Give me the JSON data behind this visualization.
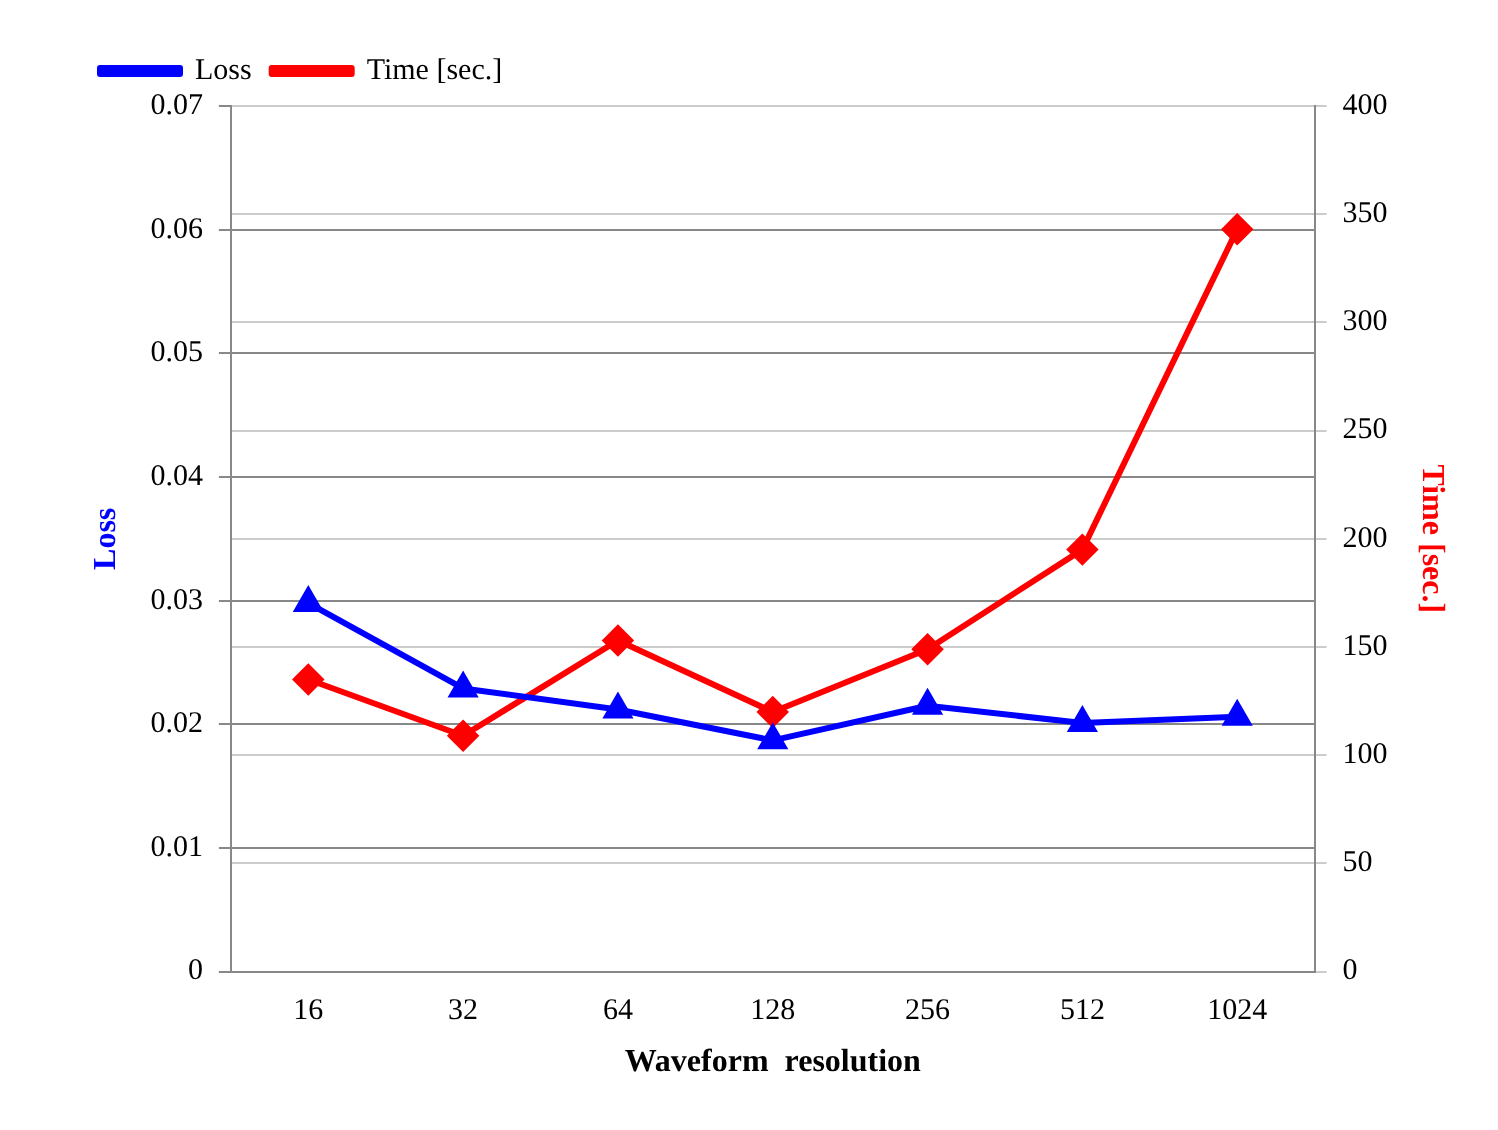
{
  "chart_data": {
    "type": "line",
    "xlabel": "Waveform  resolution",
    "ylabel": "Loss",
    "y2label": "Time [sec.]",
    "categories": [
      "16",
      "32",
      "64",
      "128",
      "256",
      "512",
      "1024"
    ],
    "series": [
      {
        "name": "Loss",
        "color": "#0000ff",
        "marker": "triangle",
        "values": [
          0.0298,
          0.0229,
          0.0212,
          0.0187,
          0.0215,
          0.0201,
          0.0206
        ]
      },
      {
        "name": "Time [sec.]",
        "color": "#ff0000",
        "marker": "diamond",
        "axis": "y2",
        "values": [
          135,
          109,
          153,
          120,
          149,
          195,
          343
        ]
      }
    ],
    "ylim": [
      0,
      0.07
    ],
    "yticks": [
      0,
      0.01,
      0.02,
      0.03,
      0.04,
      0.05,
      0.06,
      0.07
    ],
    "y2lim": [
      0,
      400
    ],
    "y2ticks": [
      0,
      50,
      100,
      150,
      200,
      250,
      300,
      350,
      400
    ],
    "grid": "y",
    "legend": "top left"
  }
}
